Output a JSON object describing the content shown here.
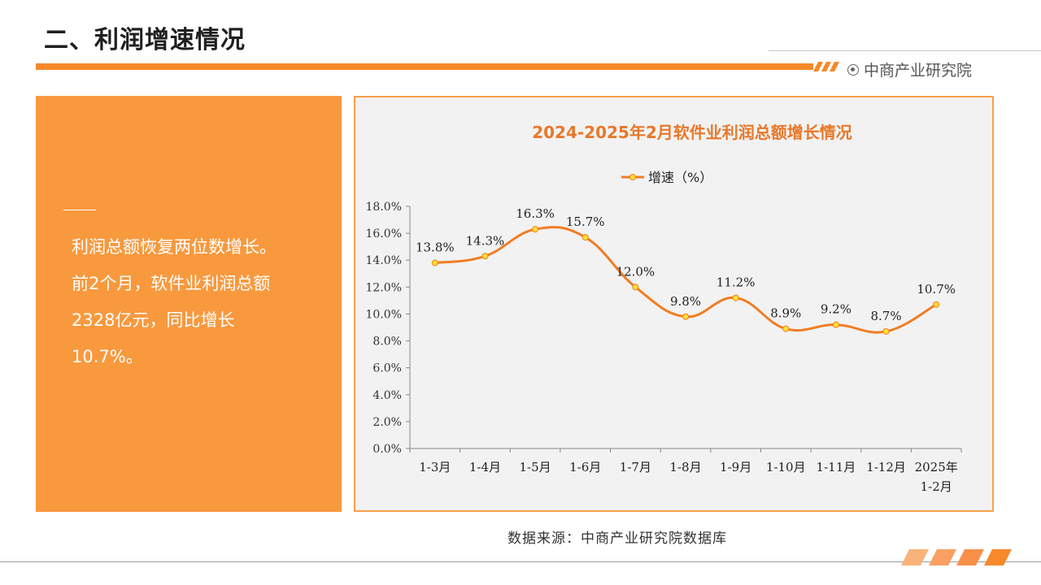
{
  "header": {
    "title": "二、利润增速情况",
    "brand": "中商产业研究院"
  },
  "summary": {
    "text": "利润总额恢复两位数增长。前2个月，软件业利润总额2328亿元，同比增长10.7%。"
  },
  "source": "数据来源：中商产业研究院数据库",
  "colors": {
    "accent": "#f7892a",
    "panel": "#f8993e",
    "line": "#f07d23",
    "marker": "#ffe033",
    "title": "#e8782a"
  },
  "chart_data": {
    "type": "line",
    "title": "2024-2025年2月软件业利润总额增长情况",
    "categories": [
      "1-3月",
      "1-4月",
      "1-5月",
      "1-6月",
      "1-7月",
      "1-8月",
      "1-9月",
      "1-10月",
      "1-11月",
      "1-12月",
      "2025年1-2月"
    ],
    "series": [
      {
        "name": "增速（%）",
        "values": [
          13.8,
          14.3,
          16.3,
          15.7,
          12.0,
          9.8,
          11.2,
          8.9,
          9.2,
          8.7,
          10.7
        ],
        "labels": [
          "13.8%",
          "14.3%",
          "16.3%",
          "15.7%",
          "12.0%",
          "9.8%",
          "11.2%",
          "8.9%",
          "9.2%",
          "8.7%",
          "10.7%"
        ]
      }
    ],
    "yticks": [
      "0.0%",
      "2.0%",
      "4.0%",
      "6.0%",
      "8.0%",
      "10.0%",
      "12.0%",
      "14.0%",
      "16.0%",
      "18.0%"
    ],
    "ylim": [
      0,
      18
    ],
    "xlabel": "",
    "ylabel": "",
    "legend": "top",
    "grid": false,
    "smooth": true
  }
}
